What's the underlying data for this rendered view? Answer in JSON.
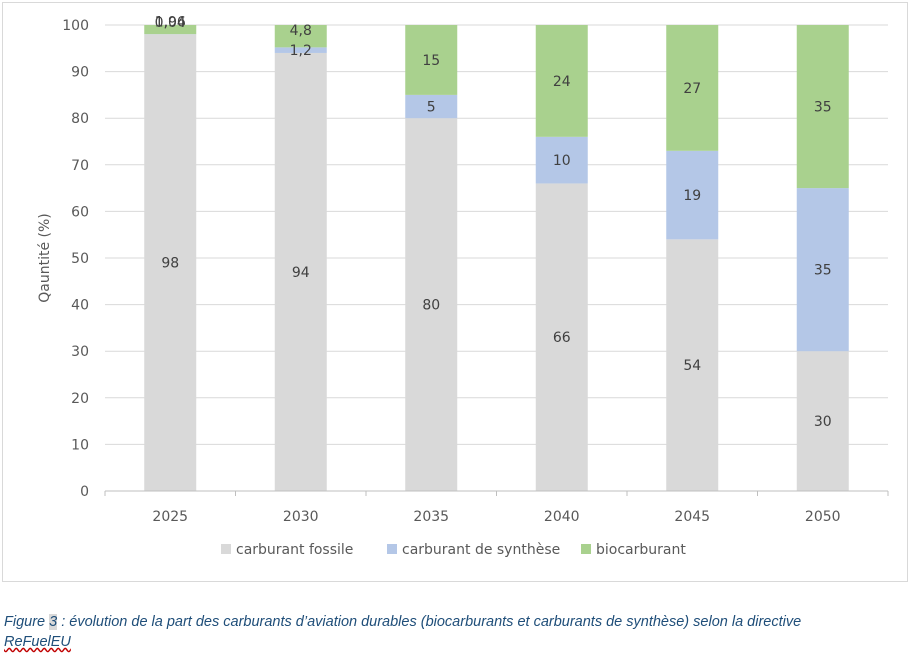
{
  "chart_data": {
    "type": "bar",
    "stacked": true,
    "categories": [
      "2025",
      "2030",
      "2035",
      "2040",
      "2045",
      "2050"
    ],
    "series": [
      {
        "name": "carburant fossile",
        "color": "#d9d9d9",
        "values": [
          98,
          94,
          80,
          66,
          54,
          30
        ]
      },
      {
        "name": "carburant de synthèse",
        "color": "#b4c7e7",
        "values": [
          0.04,
          1.2,
          5,
          10,
          19,
          35
        ]
      },
      {
        "name": "biocarburant",
        "color": "#a9d18e",
        "values": [
          1.96,
          4.8,
          15,
          24,
          27,
          35
        ]
      }
    ],
    "data_labels": [
      [
        "98",
        "94",
        "80",
        "66",
        "54",
        "30"
      ],
      [
        "0,04",
        "1,2",
        "5",
        "10",
        "19",
        "35"
      ],
      [
        "1,96",
        "4,8",
        "15",
        "24",
        "27",
        "35"
      ]
    ],
    "yticks": [
      0,
      10,
      20,
      30,
      40,
      50,
      60,
      70,
      80,
      90,
      100
    ],
    "ylim": [
      0,
      100
    ],
    "ylabel": "Qauntité (%)",
    "xlabel": "",
    "title": "",
    "grid": true,
    "legend": "bottom"
  },
  "caption": {
    "prefix": "Figure ",
    "number": "3",
    "text": " : évolution de la part des carburants d’aviation durables (biocarburants et carburants de synthèse) selon la directive",
    "line2": "ReFuelEU"
  }
}
